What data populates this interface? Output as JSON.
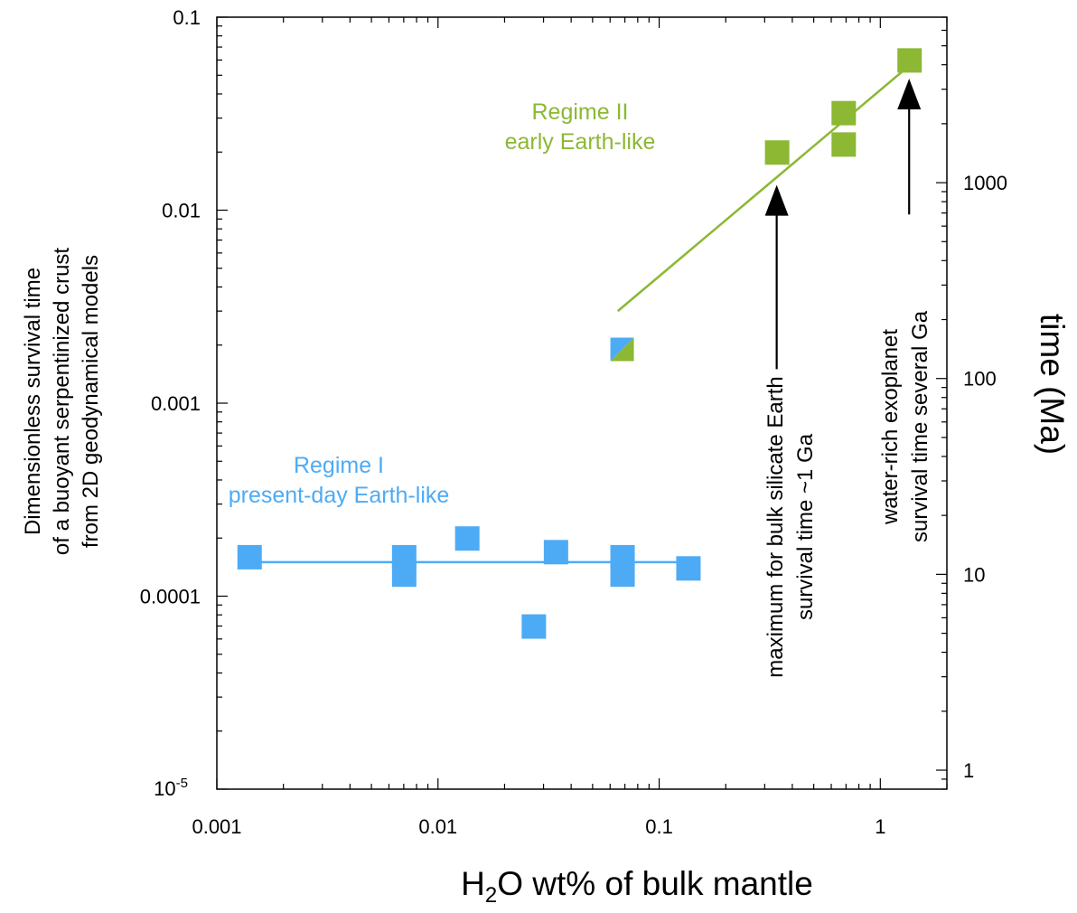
{
  "chart_data": {
    "type": "scatter",
    "xscale": "log",
    "yscale": "log",
    "xlim": [
      0.001,
      2
    ],
    "ylim": [
      1e-05,
      0.1
    ],
    "xlabel": {
      "prefix": "H",
      "sub": "2",
      "suffix": "O wt% of bulk mantle"
    },
    "ylabel": [
      "Dimensionless survival time",
      "of a buoyant serpentinized crust",
      "from 2D geodynamical models"
    ],
    "y2label": "time (Ma)",
    "x_ticks": [
      {
        "value": 0.001,
        "label": "0.001"
      },
      {
        "value": 0.01,
        "label": "0.01"
      },
      {
        "value": 0.1,
        "label": "0.1"
      },
      {
        "value": 1,
        "label": "1"
      }
    ],
    "y_ticks": [
      {
        "value": 0.1,
        "label": "0.1"
      },
      {
        "value": 0.01,
        "label": "0.01"
      },
      {
        "value": 0.001,
        "label": "0.001"
      },
      {
        "value": 0.0001,
        "label": "0.0001"
      }
    ],
    "y_tick_bottom": {
      "value": 1e-05,
      "base": "10",
      "exp": "-5"
    },
    "y2_ticks": [
      {
        "value": 1000,
        "label": "1000"
      },
      {
        "value": 100,
        "label": "100"
      },
      {
        "value": 10,
        "label": "10"
      },
      {
        "value": 1,
        "label": "1"
      }
    ],
    "y2_range_ma": [
      0.8,
      7000
    ],
    "colors": {
      "regime1": "#4dabf5",
      "regime2": "#8cb834",
      "text": "#000000"
    },
    "series": [
      {
        "name": "Regime I",
        "color": "#4dabf5",
        "points": [
          {
            "x": 0.0014,
            "y": 0.00016
          },
          {
            "x": 0.007,
            "y": 0.00016
          },
          {
            "x": 0.007,
            "y": 0.00013
          },
          {
            "x": 0.0135,
            "y": 0.0002
          },
          {
            "x": 0.027,
            "y": 7e-05
          },
          {
            "x": 0.034,
            "y": 0.00017
          },
          {
            "x": 0.068,
            "y": 0.00016
          },
          {
            "x": 0.068,
            "y": 0.00013
          },
          {
            "x": 0.135,
            "y": 0.00014
          }
        ],
        "fit": [
          {
            "x": 0.0014,
            "y": 0.00015
          },
          {
            "x": 0.14,
            "y": 0.00015
          }
        ]
      },
      {
        "name": "Regime II",
        "color": "#8cb834",
        "points": [
          {
            "x": 0.34,
            "y": 0.02
          },
          {
            "x": 0.68,
            "y": 0.032
          },
          {
            "x": 0.68,
            "y": 0.022
          },
          {
            "x": 1.35,
            "y": 0.06
          }
        ],
        "fit": [
          {
            "x": 0.065,
            "y": 0.003
          },
          {
            "x": 1.35,
            "y": 0.056
          }
        ]
      }
    ],
    "transition_point": {
      "x": 0.068,
      "y": 0.0019
    },
    "regime_labels": [
      {
        "lines": [
          "Regime II",
          "early Earth-like"
        ],
        "color": "#8cb834"
      },
      {
        "lines": [
          "Regime I",
          "present-day Earth-like"
        ],
        "color": "#4dabf5"
      }
    ],
    "annotations": [
      {
        "arrow_x": 0.34,
        "arrow_tip_y": 0.0135,
        "arrow_tail_y": 0.0015,
        "lines": [
          "maximum for bulk silicate Earth",
          "survival time ~1 Ga"
        ]
      },
      {
        "arrow_x": 1.35,
        "arrow_tip_y": 0.048,
        "arrow_tail_y": 0.0095,
        "lines": [
          "water-rich exoplanet",
          "survival time several Ga"
        ]
      }
    ]
  }
}
